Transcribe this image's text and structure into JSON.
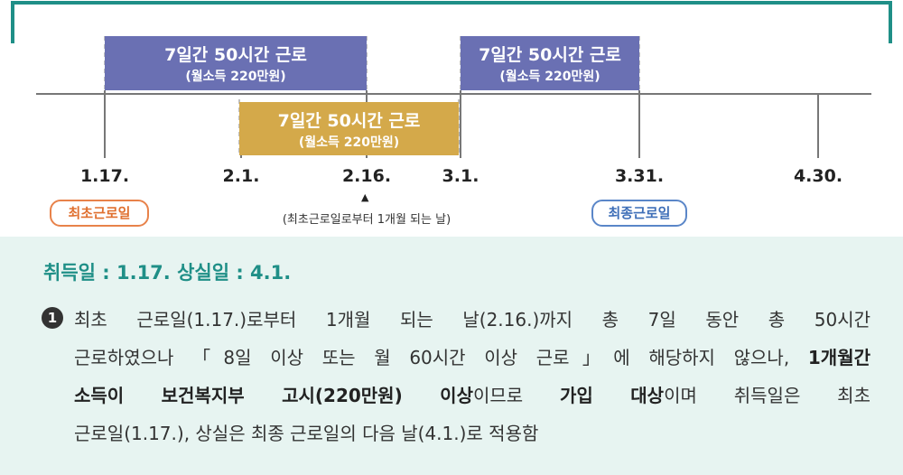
{
  "diagram": {
    "boxes": [
      {
        "title": "7일간 50시간 근로",
        "sub": "(월소득 220만원)"
      },
      {
        "title": "7일간 50시간 근로",
        "sub": "(월소득 220만원)"
      },
      {
        "title": "7일간 50시간 근로",
        "sub": "(월소득 220만원)"
      }
    ],
    "dates": [
      "1.17.",
      "2.1.",
      "2.16.",
      "3.1.",
      "3.31.",
      "4.30."
    ],
    "tags": [
      "최초근로일",
      "최종근로일"
    ],
    "pointer": "▲",
    "note": "(최초근로일로부터 1개월 되는 날)"
  },
  "section": {
    "title": "취득일 : 1.17. 상실일 : 4.1.",
    "marker": "1",
    "lines": [
      [
        {
          "text": "최초 근로일(1.17.)로부터 1개월 되는 날(2.16.)까지 총 7일 동안 총 50시간",
          "bold": false
        }
      ],
      [
        {
          "text": "근로하였으나 「8일 이상 또는 월 60시간 이상 근로」에 해당하지 않으나, ",
          "bold": false
        },
        {
          "text": "1개월간",
          "bold": true
        }
      ],
      [
        {
          "text": "소득이 보건복지부 고시(220만원) 이상",
          "bold": true
        },
        {
          "text": "이므로 ",
          "bold": false
        },
        {
          "text": "가입 대상",
          "bold": true
        },
        {
          "text": "이며 취득일은 최초",
          "bold": false
        }
      ],
      [
        {
          "text": "근로일(1.17.), 상실은 최종 근로일의 다음 날(4.1.)로 적용함",
          "bold": false
        }
      ]
    ]
  }
}
